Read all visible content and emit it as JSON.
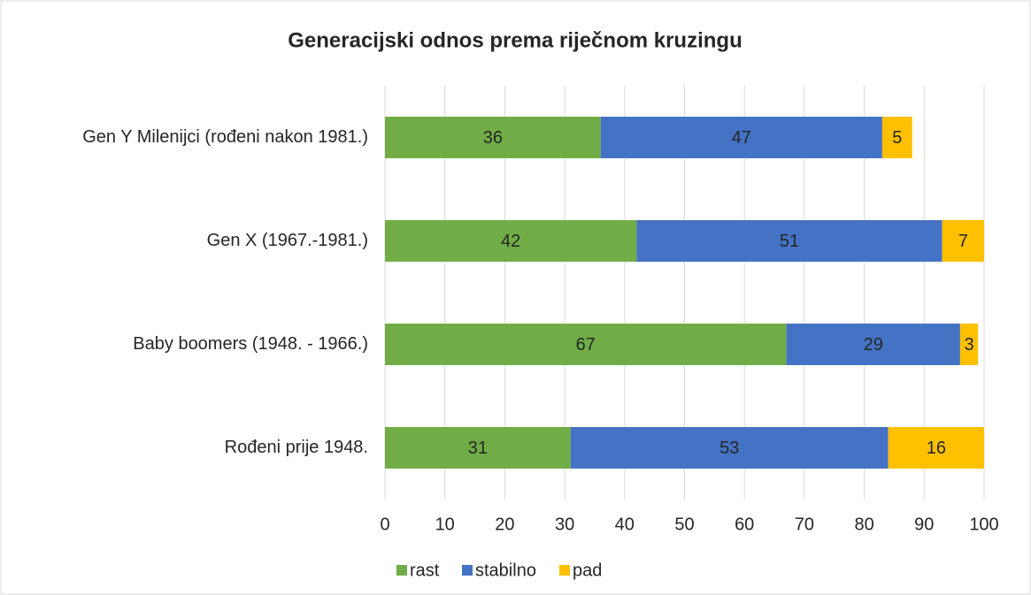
{
  "chart_data": {
    "type": "stacked-barh",
    "title": "Generacijski odnos prema riječnom kruzingu",
    "categories": [
      "Gen Y Milenijci (rođeni nakon 1981.)",
      "Gen X (1967.-1981.)",
      "Baby boomers (1948. - 1966.)",
      "Rođeni prije 1948."
    ],
    "series": [
      {
        "name": "rast",
        "color": "#70ad47",
        "values": [
          36,
          42,
          67,
          31
        ]
      },
      {
        "name": "stabilno",
        "color": "#4472c4",
        "values": [
          47,
          51,
          29,
          53
        ]
      },
      {
        "name": "pad",
        "color": "#ffc000",
        "values": [
          5,
          7,
          3,
          16
        ]
      }
    ],
    "xlim": [
      0,
      100
    ],
    "xticks": [
      0,
      10,
      20,
      30,
      40,
      50,
      60,
      70,
      80,
      90,
      100
    ],
    "grid": true,
    "legend": "bottom"
  }
}
